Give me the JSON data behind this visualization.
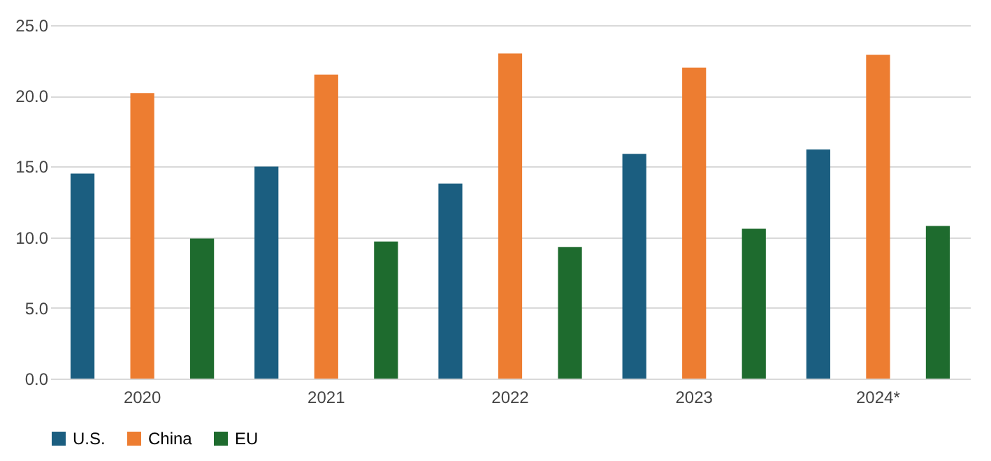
{
  "chart_data": {
    "type": "bar",
    "categories": [
      "2020",
      "2021",
      "2022",
      "2023",
      "2024*"
    ],
    "series": [
      {
        "name": "U.S.",
        "color": "#1b5e80",
        "values": [
          14.5,
          15.0,
          13.8,
          15.9,
          16.2
        ]
      },
      {
        "name": "China",
        "color": "#ed7d31",
        "values": [
          20.2,
          21.5,
          23.0,
          22.0,
          22.9
        ]
      },
      {
        "name": "EU",
        "color": "#1e6b2e",
        "values": [
          9.9,
          9.7,
          9.3,
          10.6,
          10.8
        ]
      }
    ],
    "ylim": [
      0,
      25
    ],
    "yticks": [
      {
        "value": 0,
        "label": "0.0"
      },
      {
        "value": 5,
        "label": "5.0"
      },
      {
        "value": 10,
        "label": "10.0"
      },
      {
        "value": 15,
        "label": "15.0"
      },
      {
        "value": 20,
        "label": "20.0"
      },
      {
        "value": 25,
        "label": "25.0"
      }
    ],
    "grid": "y",
    "legend": "bottom"
  }
}
